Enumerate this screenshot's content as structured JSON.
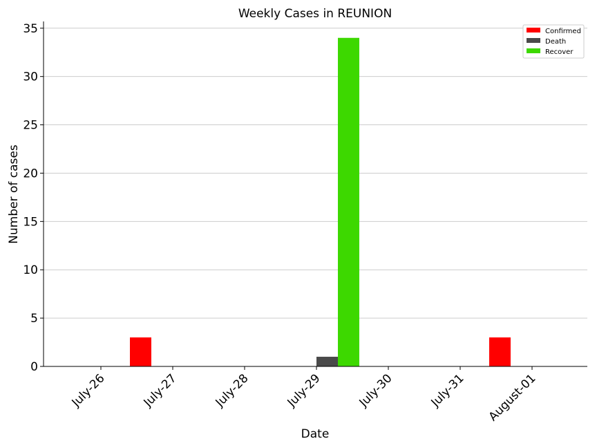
{
  "chart_data": {
    "type": "bar",
    "title": "Weekly Cases in REUNION",
    "xlabel": "Date",
    "ylabel": "Number of cases",
    "categories": [
      "July-26",
      "July-27",
      "July-28",
      "July-29",
      "July-30",
      "July-31",
      "August-01"
    ],
    "series": [
      {
        "name": "Confirmed",
        "color": "#ff0000",
        "values": [
          0,
          3,
          0,
          0,
          0,
          0,
          3
        ]
      },
      {
        "name": "Death",
        "color": "#4a4a4a",
        "values": [
          0,
          0,
          0,
          1,
          0,
          0,
          0
        ]
      },
      {
        "name": "Recover",
        "color": "#3dd800",
        "values": [
          0,
          0,
          0,
          34,
          0,
          0,
          0
        ]
      }
    ],
    "ylim": [
      0,
      35.7
    ],
    "yticks": [
      0,
      5,
      10,
      15,
      20,
      25,
      30,
      35
    ],
    "grid": "horizontal",
    "legend": "top-right"
  }
}
